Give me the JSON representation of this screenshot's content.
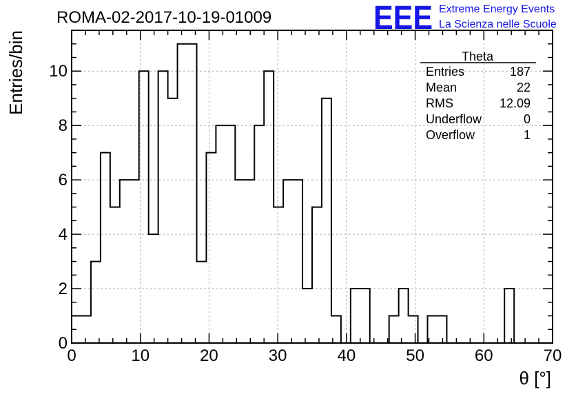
{
  "header": {
    "title": "ROMA-02-2017-10-19-01009",
    "logo_text": "EEE",
    "org_line1": "Extreme Energy Events",
    "org_line2": "La Scienza nelle Scuole"
  },
  "colors": {
    "brand_blue": "#1515e6",
    "grid": "#b0b0b0",
    "line": "#000000"
  },
  "stats_box": {
    "title": "Theta",
    "rows": [
      {
        "label": "Entries",
        "value": "187"
      },
      {
        "label": "Mean",
        "value": "22"
      },
      {
        "label": "RMS",
        "value": "12.09"
      },
      {
        "label": "Underflow",
        "value": "0"
      },
      {
        "label": "Overflow",
        "value": "1"
      }
    ]
  },
  "chart_data": {
    "type": "bar",
    "title": "ROMA-02-2017-10-19-01009",
    "xlabel": "θ [°]",
    "ylabel": "Entries/bin",
    "xlim": [
      0,
      70
    ],
    "ylim": [
      0,
      11.5
    ],
    "grid": true,
    "x_ticks": [
      0,
      10,
      20,
      30,
      40,
      50,
      60,
      70
    ],
    "y_ticks": [
      0,
      2,
      4,
      6,
      8,
      10
    ],
    "bin_width": 1.4,
    "bin_edges_start": 0,
    "values": [
      1,
      1,
      3,
      7,
      5,
      6,
      6,
      10,
      4,
      10,
      9,
      11,
      11,
      3,
      7,
      8,
      8,
      6,
      6,
      8,
      10,
      5,
      6,
      6,
      2,
      5,
      9,
      1,
      0,
      2,
      2,
      0,
      0,
      1,
      2,
      1,
      0,
      1,
      1,
      0,
      0,
      0,
      0,
      0,
      0,
      2,
      0,
      0,
      0,
      0
    ]
  }
}
